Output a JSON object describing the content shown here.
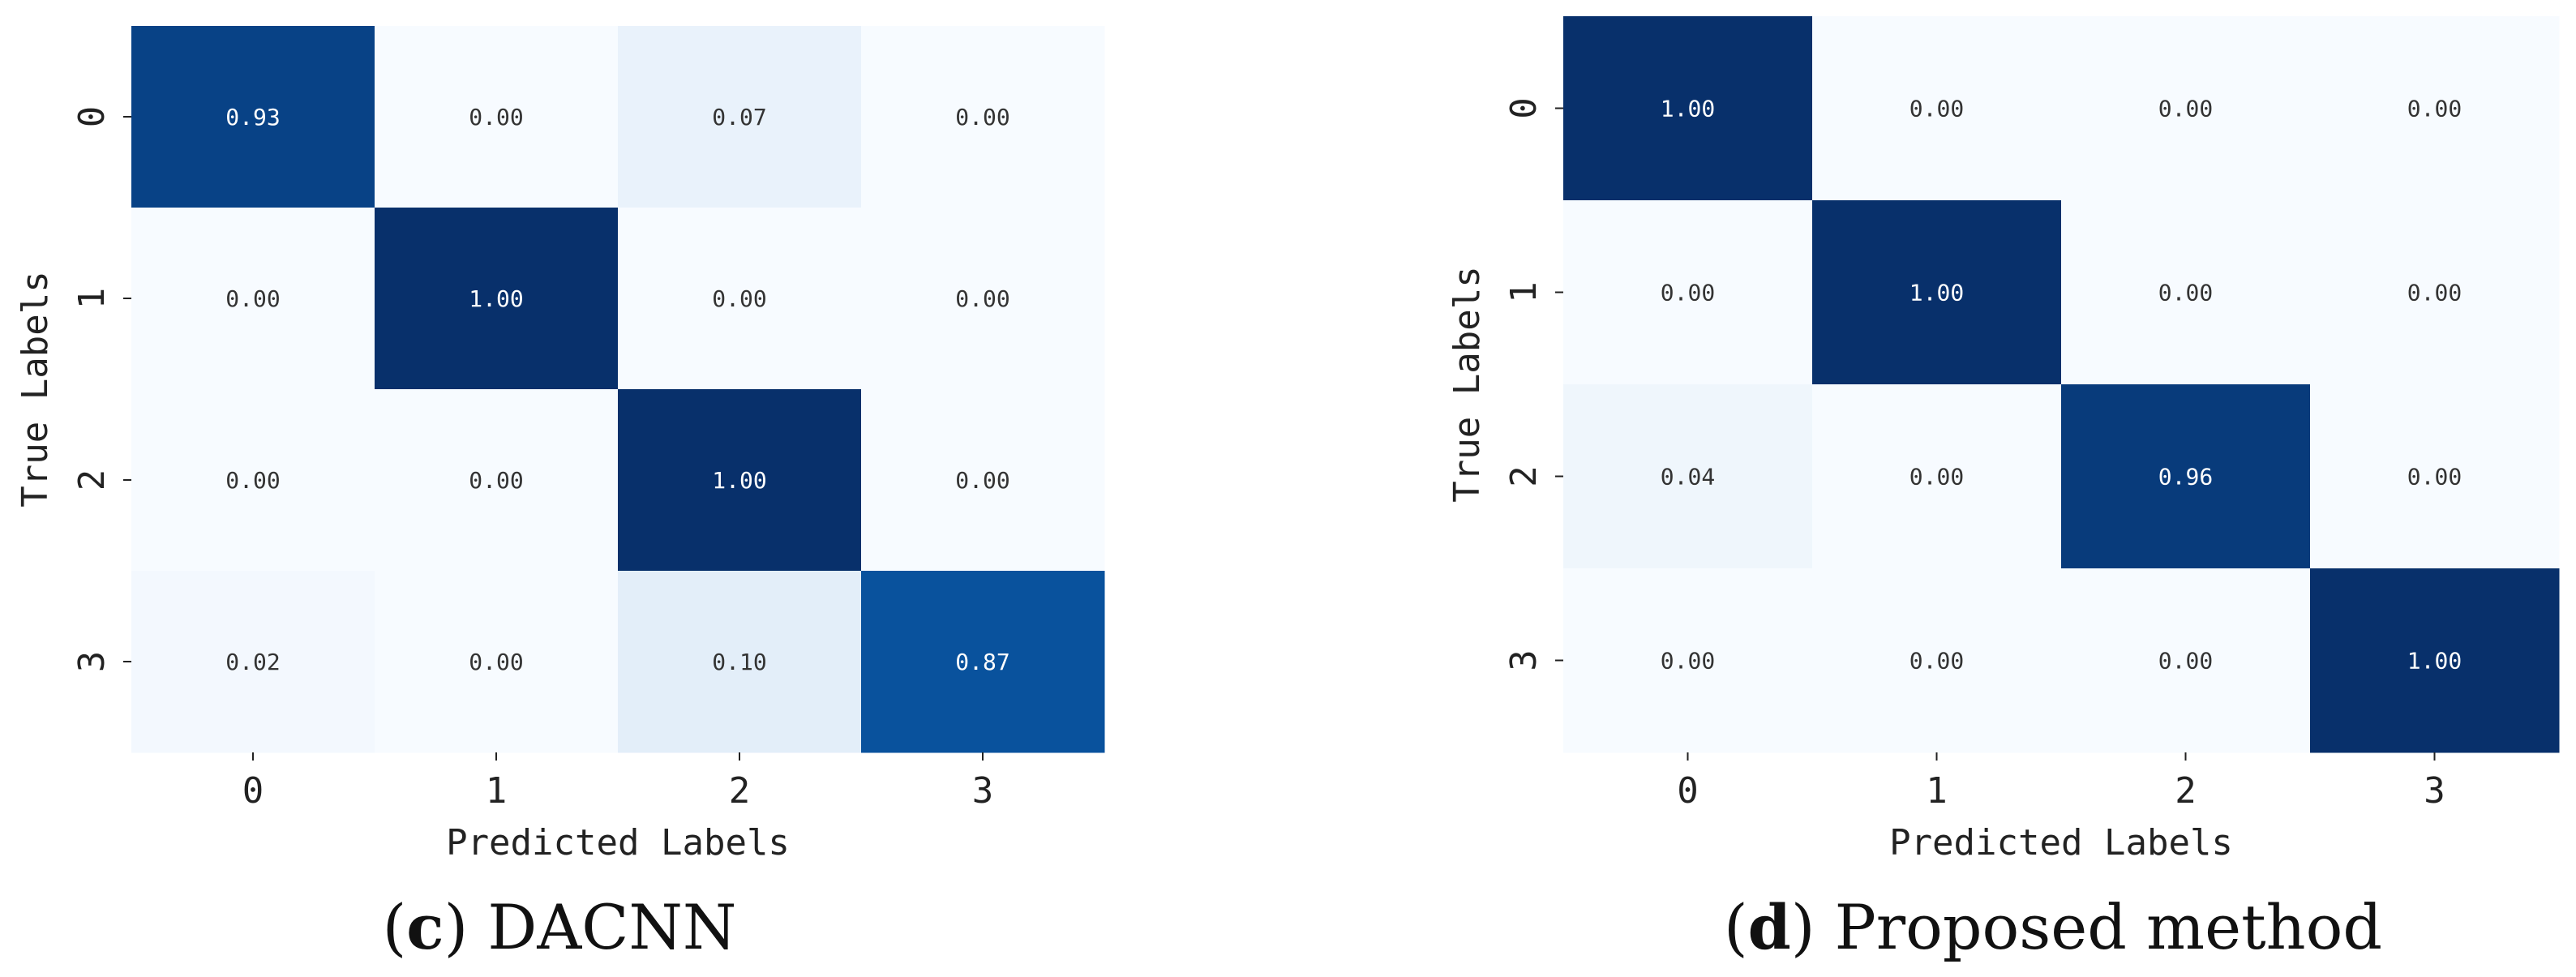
{
  "chart_data": [
    {
      "type": "heatmap",
      "caption_letter": "c",
      "caption_text": "DACNN",
      "xlabel": "Predicted Labels",
      "ylabel": "True Labels",
      "x_categories": [
        "0",
        "1",
        "2",
        "3"
      ],
      "y_categories": [
        "0",
        "1",
        "2",
        "3"
      ],
      "colormap": "Blues",
      "value_range": [
        0,
        1
      ],
      "values": [
        [
          0.93,
          0.0,
          0.07,
          0.0
        ],
        [
          0.0,
          1.0,
          0.0,
          0.0
        ],
        [
          0.0,
          0.0,
          1.0,
          0.0
        ],
        [
          0.02,
          0.0,
          0.1,
          0.87
        ]
      ]
    },
    {
      "type": "heatmap",
      "caption_letter": "d",
      "caption_text": "Proposed method",
      "xlabel": "Predicted Labels",
      "ylabel": "True Labels",
      "x_categories": [
        "0",
        "1",
        "2",
        "3"
      ],
      "y_categories": [
        "0",
        "1",
        "2",
        "3"
      ],
      "colormap": "Blues",
      "value_range": [
        0,
        1
      ],
      "values": [
        [
          1.0,
          0.0,
          0.0,
          0.0
        ],
        [
          0.0,
          1.0,
          0.0,
          0.0
        ],
        [
          0.04,
          0.0,
          0.96,
          0.0
        ],
        [
          0.0,
          0.0,
          0.0,
          1.0
        ]
      ]
    }
  ]
}
